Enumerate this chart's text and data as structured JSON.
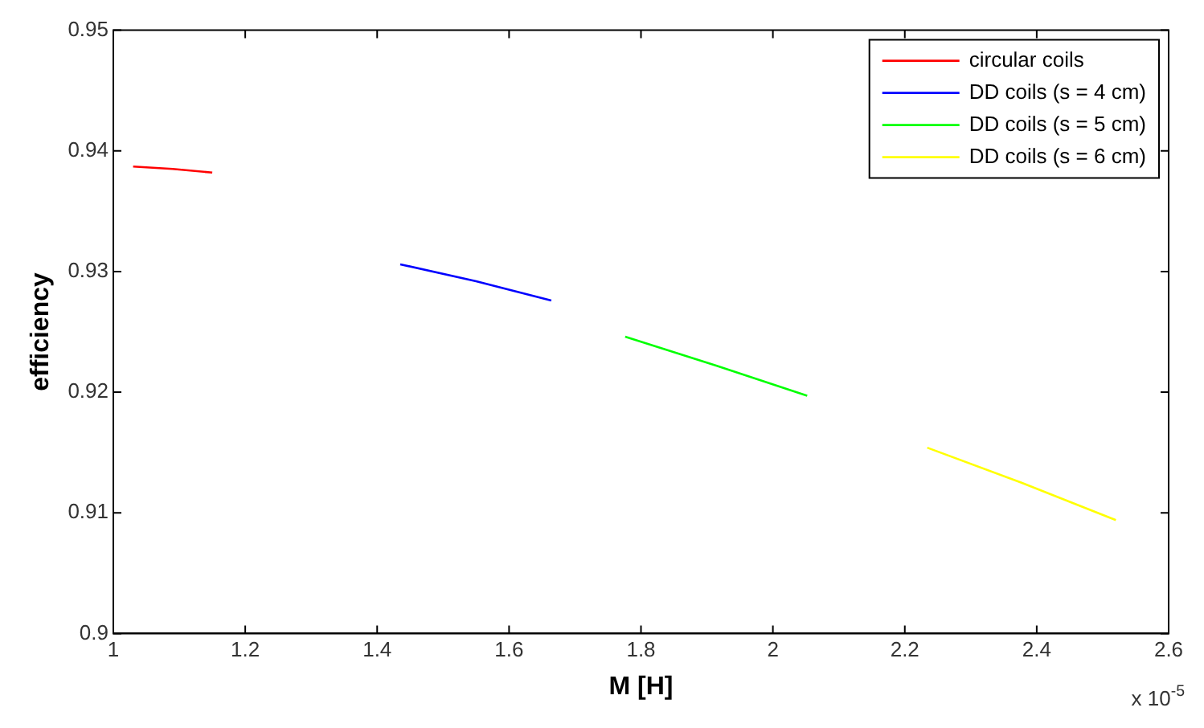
{
  "chart_data": {
    "type": "line",
    "xlabel": "M [H]",
    "ylabel": "efficiency",
    "xlim": [
      1,
      2.6
    ],
    "xticks": [
      1,
      1.2,
      1.4,
      1.6,
      1.8,
      2,
      2.2,
      2.4,
      2.6
    ],
    "ylim": [
      0.9,
      0.95
    ],
    "yticks": [
      0.9,
      0.91,
      0.92,
      0.93,
      0.94,
      0.95
    ],
    "grid": false,
    "legend": "top right",
    "annotations": [
      "x 10$^{-5}$"
    ],
    "series": [
      {
        "name": "circular coils",
        "color": "#ff0000",
        "x": [
          1.03,
          1.09,
          1.15
        ],
        "values": [
          0.9387,
          0.9385,
          0.9382
        ]
      },
      {
        "name": "DD coils (s = 4 cm)",
        "color": "#0000ff",
        "x": [
          1.435,
          1.55,
          1.664
        ],
        "values": [
          0.9306,
          0.9292,
          0.9276
        ]
      },
      {
        "name": "DD coils (s = 5 cm)",
        "color": "#00ff00",
        "x": [
          1.776,
          1.914,
          2.052
        ],
        "values": [
          0.9246,
          0.9222,
          0.9197
        ]
      },
      {
        "name": "DD coils (s = 6 cm)",
        "color": "#ffff00",
        "x": [
          2.234,
          2.377,
          2.52
        ],
        "values": [
          0.9154,
          0.9125,
          0.9094
        ]
      }
    ]
  }
}
